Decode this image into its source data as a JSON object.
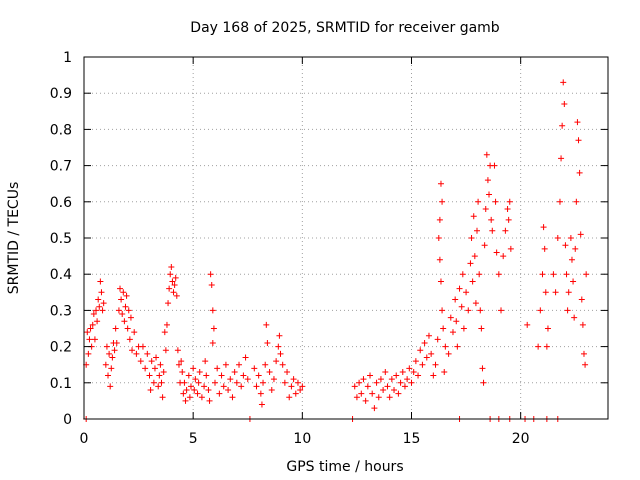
{
  "chart_data": {
    "type": "scatter",
    "title": "Day 168 of 2025, SRMTID for receiver gamb",
    "xlabel": "GPS time / hours",
    "ylabel": "SRMTID / TECUs",
    "xlim": [
      0,
      24
    ],
    "ylim": [
      0,
      1
    ],
    "xticks": [
      0,
      5,
      10,
      15,
      20
    ],
    "xtick_labels": [
      "0",
      "5",
      "10",
      "15",
      "20"
    ],
    "yticks": [
      0,
      0.1,
      0.2,
      0.3,
      0.4,
      0.5,
      0.6,
      0.7,
      0.8,
      0.9,
      1
    ],
    "ytick_labels": [
      "0",
      "0.1",
      "0.2",
      "0.3",
      "0.4",
      "0.5",
      "0.6",
      "0.7",
      "0.8",
      "0.9",
      "1"
    ],
    "grid": true,
    "marker": "+",
    "series": [
      {
        "name": "SRMTID",
        "color": "#ff0000",
        "points": [
          [
            0.1,
            0.0
          ],
          [
            0.1,
            0.15
          ],
          [
            0.15,
            0.24
          ],
          [
            0.2,
            0.18
          ],
          [
            0.25,
            0.22
          ],
          [
            0.3,
            0.25
          ],
          [
            0.35,
            0.2
          ],
          [
            0.4,
            0.26
          ],
          [
            0.45,
            0.29
          ],
          [
            0.5,
            0.22
          ],
          [
            0.55,
            0.3
          ],
          [
            0.6,
            0.27
          ],
          [
            0.65,
            0.33
          ],
          [
            0.7,
            0.31
          ],
          [
            0.75,
            0.38
          ],
          [
            0.8,
            0.35
          ],
          [
            0.85,
            0.3
          ],
          [
            0.9,
            0.32
          ],
          [
            1.0,
            0.15
          ],
          [
            1.05,
            0.2
          ],
          [
            1.1,
            0.12
          ],
          [
            1.15,
            0.18
          ],
          [
            1.2,
            0.09
          ],
          [
            1.25,
            0.14
          ],
          [
            1.3,
            0.17
          ],
          [
            1.35,
            0.21
          ],
          [
            1.4,
            0.19
          ],
          [
            1.45,
            0.25
          ],
          [
            1.5,
            0.21
          ],
          [
            1.6,
            0.3
          ],
          [
            1.65,
            0.36
          ],
          [
            1.7,
            0.33
          ],
          [
            1.75,
            0.29
          ],
          [
            1.8,
            0.35
          ],
          [
            1.85,
            0.27
          ],
          [
            1.9,
            0.31
          ],
          [
            1.95,
            0.34
          ],
          [
            2.0,
            0.25
          ],
          [
            2.05,
            0.3
          ],
          [
            2.1,
            0.22
          ],
          [
            2.15,
            0.28
          ],
          [
            2.2,
            0.19
          ],
          [
            2.3,
            0.24
          ],
          [
            2.4,
            0.18
          ],
          [
            2.5,
            0.2
          ],
          [
            2.6,
            0.16
          ],
          [
            2.7,
            0.2
          ],
          [
            2.8,
            0.14
          ],
          [
            2.9,
            0.18
          ],
          [
            3.0,
            0.12
          ],
          [
            3.05,
            0.08
          ],
          [
            3.1,
            0.16
          ],
          [
            3.2,
            0.1
          ],
          [
            3.25,
            0.14
          ],
          [
            3.3,
            0.17
          ],
          [
            3.4,
            0.09
          ],
          [
            3.45,
            0.12
          ],
          [
            3.5,
            0.15
          ],
          [
            3.55,
            0.1
          ],
          [
            3.6,
            0.06
          ],
          [
            3.65,
            0.13
          ],
          [
            3.7,
            0.24
          ],
          [
            3.75,
            0.19
          ],
          [
            3.8,
            0.26
          ],
          [
            3.85,
            0.32
          ],
          [
            3.9,
            0.36
          ],
          [
            3.95,
            0.4
          ],
          [
            4.0,
            0.42
          ],
          [
            4.05,
            0.38
          ],
          [
            4.1,
            0.35
          ],
          [
            4.15,
            0.37
          ],
          [
            4.2,
            0.39
          ],
          [
            4.25,
            0.34
          ],
          [
            4.3,
            0.19
          ],
          [
            4.35,
            0.15
          ],
          [
            4.4,
            0.1
          ],
          [
            4.45,
            0.16
          ],
          [
            4.5,
            0.13
          ],
          [
            4.55,
            0.07
          ],
          [
            4.6,
            0.1
          ],
          [
            4.65,
            0.05
          ],
          [
            4.7,
            0.08
          ],
          [
            4.8,
            0.12
          ],
          [
            4.85,
            0.06
          ],
          [
            4.9,
            0.09
          ],
          [
            5.0,
            0.14
          ],
          [
            5.05,
            0.08
          ],
          [
            5.1,
            0.11
          ],
          [
            5.2,
            0.07
          ],
          [
            5.25,
            0.1
          ],
          [
            5.3,
            0.13
          ],
          [
            5.4,
            0.06
          ],
          [
            5.5,
            0.09
          ],
          [
            5.55,
            0.16
          ],
          [
            5.6,
            0.12
          ],
          [
            5.7,
            0.08
          ],
          [
            5.75,
            0.05
          ],
          [
            5.8,
            0.4
          ],
          [
            5.85,
            0.37
          ],
          [
            5.9,
            0.3
          ],
          [
            5.95,
            0.25
          ],
          [
            5.9,
            0.21
          ],
          [
            6.0,
            0.1
          ],
          [
            6.1,
            0.14
          ],
          [
            6.2,
            0.07
          ],
          [
            6.3,
            0.12
          ],
          [
            6.4,
            0.09
          ],
          [
            6.5,
            0.15
          ],
          [
            6.6,
            0.08
          ],
          [
            6.7,
            0.11
          ],
          [
            6.8,
            0.06
          ],
          [
            6.9,
            0.13
          ],
          [
            7.0,
            0.1
          ],
          [
            7.1,
            0.15
          ],
          [
            7.2,
            0.09
          ],
          [
            7.3,
            0.12
          ],
          [
            7.4,
            0.17
          ],
          [
            7.5,
            0.11
          ],
          [
            7.6,
            0.0
          ],
          [
            7.8,
            0.14
          ],
          [
            7.9,
            0.09
          ],
          [
            8.0,
            0.12
          ],
          [
            8.1,
            0.07
          ],
          [
            8.15,
            0.04
          ],
          [
            8.2,
            0.1
          ],
          [
            8.3,
            0.15
          ],
          [
            8.35,
            0.26
          ],
          [
            8.4,
            0.21
          ],
          [
            8.5,
            0.13
          ],
          [
            8.6,
            0.08
          ],
          [
            8.7,
            0.11
          ],
          [
            8.8,
            0.16
          ],
          [
            8.9,
            0.2
          ],
          [
            8.95,
            0.23
          ],
          [
            9.0,
            0.18
          ],
          [
            9.1,
            0.15
          ],
          [
            9.2,
            0.1
          ],
          [
            9.3,
            0.13
          ],
          [
            9.4,
            0.06
          ],
          [
            9.5,
            0.09
          ],
          [
            9.6,
            0.11
          ],
          [
            9.7,
            0.07
          ],
          [
            9.8,
            0.1
          ],
          [
            9.9,
            0.08
          ],
          [
            10.0,
            0.09
          ],
          [
            12.3,
            0.0
          ],
          [
            12.4,
            0.09
          ],
          [
            12.5,
            0.06
          ],
          [
            12.6,
            0.1
          ],
          [
            12.7,
            0.07
          ],
          [
            12.8,
            0.11
          ],
          [
            12.9,
            0.05
          ],
          [
            13.0,
            0.09
          ],
          [
            13.1,
            0.12
          ],
          [
            13.2,
            0.07
          ],
          [
            13.3,
            0.03
          ],
          [
            13.4,
            0.1
          ],
          [
            13.5,
            0.06
          ],
          [
            13.6,
            0.11
          ],
          [
            13.7,
            0.08
          ],
          [
            13.8,
            0.13
          ],
          [
            13.9,
            0.09
          ],
          [
            14.0,
            0.06
          ],
          [
            14.1,
            0.11
          ],
          [
            14.2,
            0.08
          ],
          [
            14.3,
            0.12
          ],
          [
            14.4,
            0.07
          ],
          [
            14.5,
            0.1
          ],
          [
            14.6,
            0.13
          ],
          [
            14.7,
            0.09
          ],
          [
            14.8,
            0.11
          ],
          [
            14.9,
            0.14
          ],
          [
            15.0,
            0.1
          ],
          [
            15.1,
            0.13
          ],
          [
            15.2,
            0.16
          ],
          [
            15.3,
            0.12
          ],
          [
            15.4,
            0.19
          ],
          [
            15.5,
            0.15
          ],
          [
            15.6,
            0.21
          ],
          [
            15.7,
            0.17
          ],
          [
            15.8,
            0.23
          ],
          [
            15.9,
            0.18
          ],
          [
            16.0,
            0.12
          ],
          [
            16.1,
            0.15
          ],
          [
            16.2,
            0.22
          ],
          [
            16.25,
            0.5
          ],
          [
            16.3,
            0.55
          ],
          [
            16.35,
            0.65
          ],
          [
            16.3,
            0.44
          ],
          [
            16.4,
            0.6
          ],
          [
            16.35,
            0.38
          ],
          [
            16.4,
            0.3
          ],
          [
            16.45,
            0.25
          ],
          [
            16.5,
            0.13
          ],
          [
            16.55,
            0.2
          ],
          [
            16.7,
            0.18
          ],
          [
            16.8,
            0.28
          ],
          [
            16.9,
            0.24
          ],
          [
            17.0,
            0.33
          ],
          [
            17.05,
            0.27
          ],
          [
            17.1,
            0.2
          ],
          [
            17.2,
            0.36
          ],
          [
            17.3,
            0.31
          ],
          [
            17.35,
            0.4
          ],
          [
            17.4,
            0.25
          ],
          [
            17.5,
            0.35
          ],
          [
            17.6,
            0.3
          ],
          [
            17.7,
            0.43
          ],
          [
            17.75,
            0.5
          ],
          [
            17.8,
            0.38
          ],
          [
            17.85,
            0.56
          ],
          [
            17.9,
            0.45
          ],
          [
            17.95,
            0.32
          ],
          [
            18.0,
            0.52
          ],
          [
            18.05,
            0.6
          ],
          [
            18.1,
            0.4
          ],
          [
            18.15,
            0.3
          ],
          [
            18.2,
            0.25
          ],
          [
            18.25,
            0.14
          ],
          [
            18.3,
            0.1
          ],
          [
            18.35,
            0.48
          ],
          [
            18.4,
            0.58
          ],
          [
            18.45,
            0.73
          ],
          [
            18.5,
            0.66
          ],
          [
            18.55,
            0.62
          ],
          [
            18.6,
            0.7
          ],
          [
            18.65,
            0.55
          ],
          [
            18.7,
            0.52
          ],
          [
            18.8,
            0.7
          ],
          [
            18.85,
            0.6
          ],
          [
            18.9,
            0.46
          ],
          [
            19.0,
            0.4
          ],
          [
            19.1,
            0.3
          ],
          [
            19.2,
            0.45
          ],
          [
            19.3,
            0.52
          ],
          [
            19.4,
            0.58
          ],
          [
            19.45,
            0.55
          ],
          [
            19.5,
            0.6
          ],
          [
            19.55,
            0.47
          ],
          [
            17.2,
            0.0
          ],
          [
            18.6,
            0.0
          ],
          [
            19.0,
            0.0
          ],
          [
            19.5,
            0.0
          ],
          [
            20.2,
            0.0
          ],
          [
            20.6,
            0.0
          ],
          [
            21.2,
            0.0
          ],
          [
            21.7,
            0.0
          ],
          [
            20.3,
            0.26
          ],
          [
            20.8,
            0.2
          ],
          [
            20.9,
            0.3
          ],
          [
            21.0,
            0.4
          ],
          [
            21.05,
            0.53
          ],
          [
            21.1,
            0.47
          ],
          [
            21.15,
            0.35
          ],
          [
            21.2,
            0.2
          ],
          [
            21.25,
            0.25
          ],
          [
            21.5,
            0.4
          ],
          [
            21.6,
            0.35
          ],
          [
            21.7,
            0.5
          ],
          [
            21.8,
            0.6
          ],
          [
            21.85,
            0.72
          ],
          [
            21.9,
            0.81
          ],
          [
            21.95,
            0.93
          ],
          [
            22.0,
            0.87
          ],
          [
            22.05,
            0.48
          ],
          [
            22.1,
            0.4
          ],
          [
            22.15,
            0.3
          ],
          [
            22.2,
            0.35
          ],
          [
            22.3,
            0.5
          ],
          [
            22.35,
            0.44
          ],
          [
            22.4,
            0.38
          ],
          [
            22.45,
            0.28
          ],
          [
            22.5,
            0.47
          ],
          [
            22.55,
            0.6
          ],
          [
            22.6,
            0.82
          ],
          [
            22.65,
            0.77
          ],
          [
            22.7,
            0.68
          ],
          [
            22.75,
            0.51
          ],
          [
            22.8,
            0.33
          ],
          [
            22.85,
            0.26
          ],
          [
            22.9,
            0.18
          ],
          [
            22.95,
            0.15
          ],
          [
            23.0,
            0.4
          ]
        ]
      }
    ]
  }
}
